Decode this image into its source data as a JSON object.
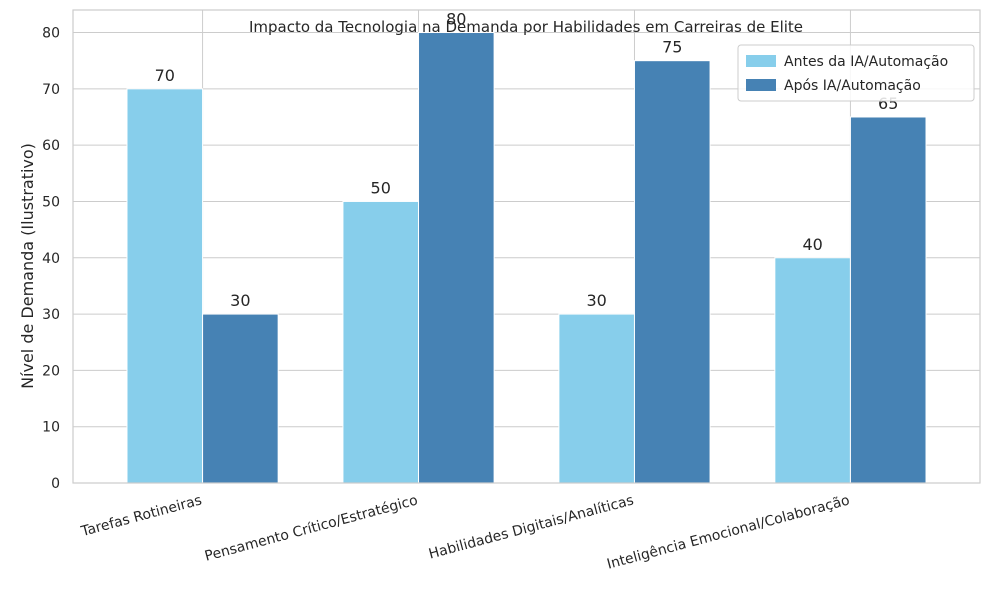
{
  "chart_data": {
    "type": "bar",
    "title": "Impacto da Tecnologia na Demanda por Habilidades em Carreiras de Elite",
    "xlabel": "",
    "ylabel": "Nível de Demanda (Ilustrativo)",
    "ylim": [
      0,
      84
    ],
    "yticks": [
      0,
      10,
      20,
      30,
      40,
      50,
      60,
      70,
      80
    ],
    "categories": [
      "Tarefas Rotineiras",
      "Pensamento Crítico/Estratégico",
      "Habilidades Digitais/Analíticas",
      "Inteligência Emocional/Colaboração"
    ],
    "series": [
      {
        "name": "Antes da IA/Automação",
        "values": [
          70,
          50,
          30,
          40
        ],
        "color": "#87ceeb"
      },
      {
        "name": "Após IA/Automação",
        "values": [
          30,
          80,
          75,
          65
        ],
        "color": "#4682b4"
      }
    ],
    "grid": true,
    "legend": "top-right",
    "data_labels": true
  }
}
